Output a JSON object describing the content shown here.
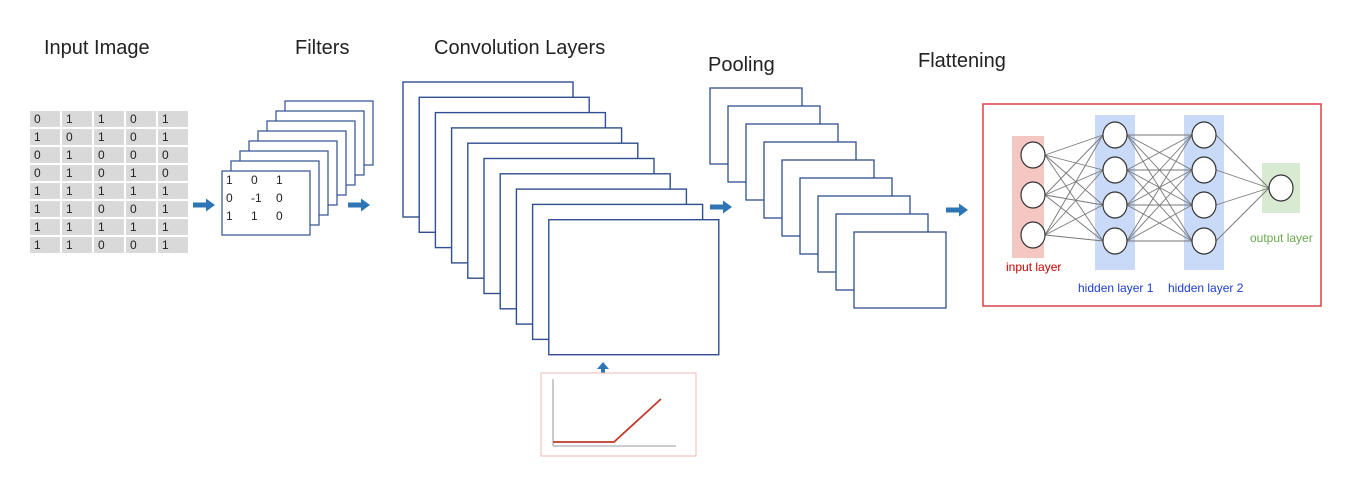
{
  "headings": {
    "input_image": "Input Image",
    "filters": "Filters",
    "convolution_layers": "Convolution Layers",
    "pooling": "Pooling",
    "flattening": "Flattening"
  },
  "input_matrix": [
    [
      "0",
      "1",
      "1",
      "0",
      "1"
    ],
    [
      "1",
      "0",
      "1",
      "0",
      "1"
    ],
    [
      "0",
      "1",
      "0",
      "0",
      "0"
    ],
    [
      "0",
      "1",
      "0",
      "1",
      "0"
    ],
    [
      "1",
      "1",
      "1",
      "1",
      "1"
    ],
    [
      "1",
      "1",
      "0",
      "0",
      "1"
    ],
    [
      "1",
      "1",
      "1",
      "1",
      "1"
    ],
    [
      "1",
      "1",
      "0",
      "0",
      "1"
    ]
  ],
  "filter_matrix": [
    [
      "1",
      "0",
      "1"
    ],
    [
      "0",
      "-1",
      "0"
    ],
    [
      "1",
      "1",
      "0"
    ]
  ],
  "network": {
    "input_label": "input layer",
    "hidden1_label": "hidden layer 1",
    "hidden2_label": "hidden layer 2",
    "output_label": "output layer",
    "layer_sizes": [
      3,
      4,
      4,
      1
    ]
  },
  "colors": {
    "arrow": "#2e75b6",
    "layer_outline": "#2f4f8f",
    "flatten_border": "#e04040",
    "input_band": "#f4c7c3",
    "hidden_band": "#c9daf8",
    "output_band": "#d9ead3",
    "input_text": "#cc0000",
    "hidden_text": "#1c3fd0",
    "output_text": "#6aa84f",
    "relu_line": "#c0392b"
  }
}
